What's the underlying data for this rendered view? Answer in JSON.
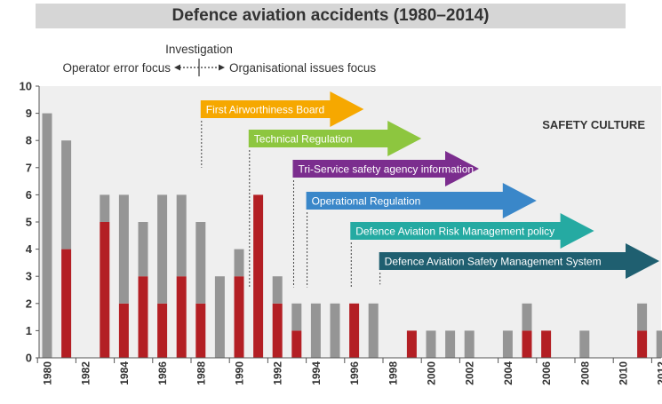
{
  "chart_data": {
    "type": "bar",
    "title": "Defence aviation accidents (1980–2014)",
    "ylim": [
      0,
      10
    ],
    "y_ticks": [
      0,
      1,
      2,
      3,
      4,
      5,
      6,
      7,
      8,
      9,
      10
    ],
    "x_range": [
      1980,
      2012
    ],
    "x_ticks": [
      1980,
      1982,
      1984,
      1986,
      1988,
      1990,
      1992,
      1994,
      1996,
      1998,
      2000,
      2002,
      2004,
      2006,
      2008,
      2010,
      2012
    ],
    "stacked": true,
    "series": [
      {
        "color": "#b31f24",
        "points": [
          {
            "x": 1980,
            "y": 0
          },
          {
            "x": 1981,
            "y": 4
          },
          {
            "x": 1983,
            "y": 5
          },
          {
            "x": 1984,
            "y": 2
          },
          {
            "x": 1985,
            "y": 3
          },
          {
            "x": 1986,
            "y": 2
          },
          {
            "x": 1987,
            "y": 3
          },
          {
            "x": 1988,
            "y": 2
          },
          {
            "x": 1989,
            "y": 0
          },
          {
            "x": 1990,
            "y": 3
          },
          {
            "x": 1991,
            "y": 6
          },
          {
            "x": 1992,
            "y": 2
          },
          {
            "x": 1993,
            "y": 1
          },
          {
            "x": 1994,
            "y": 0
          },
          {
            "x": 1995,
            "y": 0
          },
          {
            "x": 1996,
            "y": 2
          },
          {
            "x": 1997,
            "y": 0
          },
          {
            "x": 1999,
            "y": 1
          },
          {
            "x": 2000,
            "y": 0
          },
          {
            "x": 2001,
            "y": 0
          },
          {
            "x": 2002,
            "y": 0
          },
          {
            "x": 2004,
            "y": 0
          },
          {
            "x": 2005,
            "y": 1
          },
          {
            "x": 2006,
            "y": 1
          },
          {
            "x": 2008,
            "y": 0
          },
          {
            "x": 2011,
            "y": 1
          },
          {
            "x": 2012,
            "y": 0
          }
        ]
      },
      {
        "color": "#959595",
        "points": [
          {
            "x": 1980,
            "y": 9
          },
          {
            "x": 1981,
            "y": 4
          },
          {
            "x": 1983,
            "y": 1
          },
          {
            "x": 1984,
            "y": 4
          },
          {
            "x": 1985,
            "y": 2
          },
          {
            "x": 1986,
            "y": 4
          },
          {
            "x": 1987,
            "y": 3
          },
          {
            "x": 1988,
            "y": 3
          },
          {
            "x": 1989,
            "y": 3
          },
          {
            "x": 1990,
            "y": 1
          },
          {
            "x": 1991,
            "y": 0
          },
          {
            "x": 1992,
            "y": 1
          },
          {
            "x": 1993,
            "y": 1
          },
          {
            "x": 1994,
            "y": 2
          },
          {
            "x": 1995,
            "y": 2
          },
          {
            "x": 1996,
            "y": 0
          },
          {
            "x": 1997,
            "y": 2
          },
          {
            "x": 1999,
            "y": 0
          },
          {
            "x": 2000,
            "y": 1
          },
          {
            "x": 2001,
            "y": 1
          },
          {
            "x": 2002,
            "y": 1
          },
          {
            "x": 2004,
            "y": 1
          },
          {
            "x": 2005,
            "y": 1
          },
          {
            "x": 2006,
            "y": 0
          },
          {
            "x": 2008,
            "y": 1
          },
          {
            "x": 2011,
            "y": 1
          },
          {
            "x": 2012,
            "y": 1
          }
        ]
      }
    ],
    "investigation": {
      "label": "Investigation",
      "left_label": "Operator error focus",
      "right_label": "Organisational issues focus"
    },
    "region_label": "SAFETY CULTURE",
    "milestones": [
      {
        "label": "First Airworthiness Board",
        "start_year": 1988,
        "end_year": 1996.5,
        "color": "#f6a800"
      },
      {
        "label": "Technical Regulation",
        "start_year": 1990.5,
        "end_year": 1999.5,
        "color": "#8dc63f"
      },
      {
        "label": "Tri-Service safety agency information",
        "start_year": 1992.8,
        "end_year": 2002.5,
        "color": "#7b2d8e"
      },
      {
        "label": "Operational Regulation",
        "start_year": 1993.5,
        "end_year": 2005.5,
        "color": "#3a87c9"
      },
      {
        "label": "Defence Aviation Risk Management policy",
        "start_year": 1995.8,
        "end_year": 2008.5,
        "color": "#25aaa2"
      },
      {
        "label": "Defence Aviation Safety Management System",
        "start_year": 1997.3,
        "end_year": 2013.5,
        "color": "#1f5f70"
      }
    ]
  }
}
